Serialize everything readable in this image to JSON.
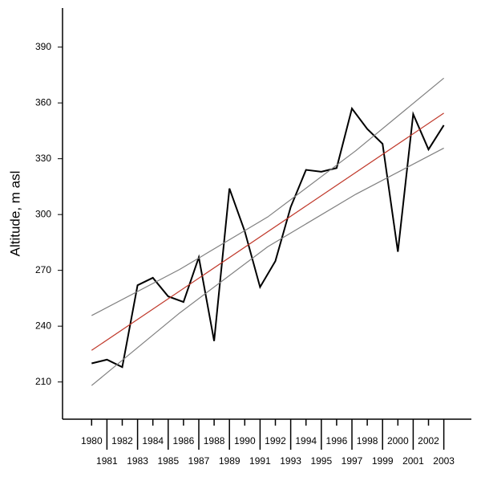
{
  "chart_data": {
    "type": "line",
    "y_label": "Altitude, m asl",
    "xlim": [
      1978.1,
      2004.8
    ],
    "ylim": [
      190,
      411
    ],
    "yticks": [
      210,
      240,
      270,
      300,
      330,
      360,
      390
    ],
    "xticks": [
      1980,
      1981,
      1982,
      1983,
      1984,
      1985,
      1986,
      1987,
      1988,
      1989,
      1990,
      1991,
      1992,
      1993,
      1994,
      1995,
      1996,
      1997,
      1998,
      1999,
      2000,
      2001,
      2002,
      2003
    ],
    "series": [
      {
        "color": "#000000",
        "x": [
          1980,
          1981,
          1982,
          1983,
          1984,
          1985,
          1986,
          1987,
          1988,
          1989,
          1990,
          1991,
          1992,
          1993,
          1994,
          1995,
          1996,
          1997,
          1998,
          1999,
          2000,
          2001,
          2002,
          2003
        ],
        "values": [
          220,
          222,
          218,
          262,
          266,
          256,
          253,
          277,
          232,
          314,
          291,
          261,
          275,
          304,
          324,
          323,
          325,
          357,
          346,
          338,
          280,
          354,
          335,
          348
        ]
      },
      {
        "color": "#c0392b",
        "x": [
          1980,
          2003
        ],
        "values": [
          227,
          354.5
        ]
      },
      {
        "color": "#808080",
        "x": [
          1980,
          1985.75,
          1991.5,
          1997.25,
          2003
        ],
        "values": [
          245.7,
          270.5,
          298.7,
          334.3,
          373.3
        ]
      },
      {
        "color": "#808080",
        "x": [
          1980,
          1985.75,
          1991.5,
          1997.25,
          2003
        ],
        "values": [
          208.1,
          247.1,
          282.7,
          310.9,
          335.7
        ]
      }
    ]
  }
}
